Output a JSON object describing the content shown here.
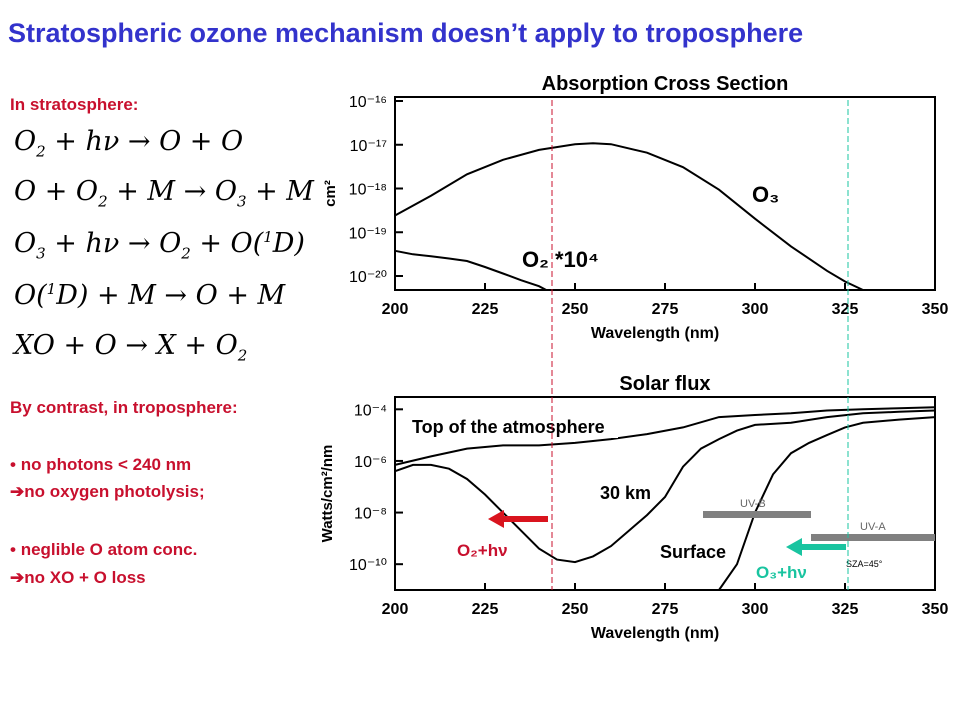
{
  "slide": {
    "title": "Stratospheric ozone mechanism doesn’t apply to troposphere",
    "strat_heading": "In stratosphere:",
    "equations": [
      {
        "lhs": "O2 + hν",
        "rhs": "O + O"
      },
      {
        "lhs": "O + O2 + M",
        "rhs": "O3 + M"
      },
      {
        "lhs": "O3 + hν",
        "rhs": "O2 + O(1D)"
      },
      {
        "lhs": "O(1D) + M",
        "rhs": "O + M"
      },
      {
        "lhs": "XO + O",
        "rhs": "X + O2"
      }
    ],
    "trop_heading": "By contrast, in troposphere:",
    "bullets": [
      {
        "main": "no photons < 240 nm",
        "sub": "no oxygen photolysis;"
      },
      {
        "main": "neglible O atom conc.",
        "sub": "no XO + O loss"
      }
    ],
    "colors": {
      "title": "#3333cc",
      "text": "#c8102e",
      "o2_arrow": "#d9141e",
      "o3_arrow": "#19c4a0"
    }
  },
  "chart_data": [
    {
      "type": "line",
      "title": "Absorption Cross Section",
      "xlabel": "Wavelength (nm)",
      "ylabel": "cm²",
      "xlim": [
        200,
        350
      ],
      "ylim": [
        1e-20,
        1e-16
      ],
      "yscale": "log",
      "x_ticks": [
        "200",
        "225",
        "250",
        "275",
        "300",
        "325",
        "350"
      ],
      "y_ticks": [
        "10⁻¹⁶",
        "10⁻¹⁷",
        "10⁻¹⁸",
        "10⁻¹⁹",
        "10⁻²⁰"
      ],
      "series": [
        {
          "name": "O₃",
          "x": [
            200,
            210,
            220,
            230,
            240,
            250,
            255,
            260,
            270,
            280,
            290,
            300,
            310,
            320,
            325,
            330
          ],
          "y": [
            3.5e-19,
            9e-19,
            2.5e-18,
            5e-18,
            8e-18,
            1.05e-17,
            1.1e-17,
            1.05e-17,
            7e-18,
            3.5e-18,
            1.2e-18,
            3e-19,
            8e-20,
            2.5e-20,
            1.5e-20,
            1e-20
          ]
        },
        {
          "name": "O₂ *10⁴",
          "x": [
            200,
            205,
            210,
            215,
            220,
            225,
            230,
            235,
            240,
            242
          ],
          "y": [
            6.5e-20,
            5.5e-20,
            5e-20,
            4.5e-20,
            4e-20,
            3e-20,
            2.2e-20,
            1.6e-20,
            1.2e-20,
            1e-20
          ]
        }
      ],
      "vlines": [
        242,
        325
      ],
      "grid": false
    },
    {
      "type": "line",
      "title": "Solar flux",
      "xlabel": "Wavelength (nm)",
      "ylabel": "Watts/cm²/nm",
      "xlim": [
        200,
        350
      ],
      "ylim": [
        1e-11,
        0.0003
      ],
      "yscale": "log",
      "x_ticks": [
        "200",
        "225",
        "250",
        "275",
        "300",
        "325",
        "350"
      ],
      "y_ticks": [
        "10⁻⁴",
        "10⁻⁶",
        "10⁻⁸",
        "10⁻¹⁰"
      ],
      "series": [
        {
          "name": "Top of the atmosphere",
          "x": [
            200,
            210,
            220,
            230,
            240,
            250,
            260,
            270,
            280,
            290,
            300,
            310,
            320,
            330,
            340,
            350
          ],
          "y": [
            7e-07,
            1.5e-06,
            3e-06,
            4e-06,
            4e-06,
            5e-06,
            7e-06,
            1.1e-05,
            2e-05,
            5e-05,
            6e-05,
            7e-05,
            9e-05,
            0.0001,
            0.00011,
            0.00012
          ]
        },
        {
          "name": "30 km",
          "x": [
            200,
            205,
            210,
            215,
            220,
            225,
            230,
            235,
            240,
            245,
            250,
            255,
            260,
            265,
            270,
            275,
            280,
            285,
            290,
            295,
            300,
            310,
            320,
            330,
            340,
            350
          ],
          "y": [
            4e-07,
            7e-07,
            7e-07,
            5e-07,
            2e-07,
            5e-08,
            1e-08,
            2e-09,
            4e-10,
            1.5e-10,
            1.2e-10,
            2e-10,
            5e-10,
            2e-09,
            8e-09,
            4e-08,
            6e-07,
            3e-06,
            7e-06,
            1.5e-05,
            2.5e-05,
            3e-05,
            5e-05,
            7e-05,
            8e-05,
            9e-05
          ]
        },
        {
          "name": "Surface",
          "x": [
            290,
            295,
            300,
            305,
            310,
            315,
            320,
            325,
            330,
            340,
            350
          ],
          "y": [
            1e-11,
            1e-10,
            1e-08,
            3e-07,
            2e-06,
            5e-06,
            1e-05,
            2e-05,
            3e-05,
            4e-05,
            5e-05
          ]
        }
      ],
      "bands": [
        {
          "name": "UV-B",
          "from": 285,
          "to": 315,
          "level": 1.5e-08
        },
        {
          "name": "UV-A",
          "from": 315,
          "to": 350,
          "level": 8e-10
        }
      ],
      "annotations": [
        "SZA=45°"
      ],
      "arrows": [
        {
          "label": "O₂+hν",
          "at": 242
        },
        {
          "label": "O₃+hν",
          "at": 325
        }
      ],
      "vlines": [
        242,
        325
      ],
      "grid": false
    }
  ]
}
